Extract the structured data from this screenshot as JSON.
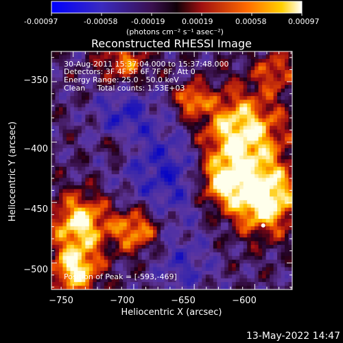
{
  "colorbar": {
    "tick_labels": [
      "-0.00097",
      "-0.00058",
      "-0.00019",
      "0.00019",
      "0.00058",
      "0.00097"
    ],
    "units_label": "(photons cm⁻² s⁻¹ asec⁻²)",
    "range": [
      -0.00097,
      0.00097
    ]
  },
  "chart_data": {
    "type": "heatmap",
    "title": "Reconstructed RHESSI Image",
    "xlabel": "Heliocentric X (arcsec)",
    "ylabel": "Heliocentric Y (arcsec)",
    "xlim": [
      -768,
      -569
    ],
    "ylim": [
      -522,
      -325
    ],
    "x_ticks": [
      -750,
      -700,
      -650,
      -600
    ],
    "y_ticks": [
      -500,
      -450,
      -400,
      -350
    ],
    "x_tick_labels": [
      "−750",
      "−700",
      "−650",
      "−600"
    ],
    "y_tick_labels": [
      "−500",
      "−450",
      "−400",
      "−350"
    ],
    "info_lines": [
      "30-Aug-2011 15:37:04.000 to 15:37:48.000",
      "Detectors: 3F 4F 5F 6F 7F 8F, Att 0",
      "Energy Range: 25.0 - 50.0 keV",
      "Clean     Total counts: 1.53E+03"
    ],
    "peak_text": "Position of Peak = [-593,-469]",
    "peak_position": [
      -593,
      -469
    ],
    "colormap": [
      "#0000ff",
      "#5a3aa8",
      "#2a0030",
      "#b01020",
      "#ff5a00",
      "#ffd000",
      "#ffffff"
    ]
  },
  "footer": {
    "date": "13-May-2022 14:47"
  }
}
